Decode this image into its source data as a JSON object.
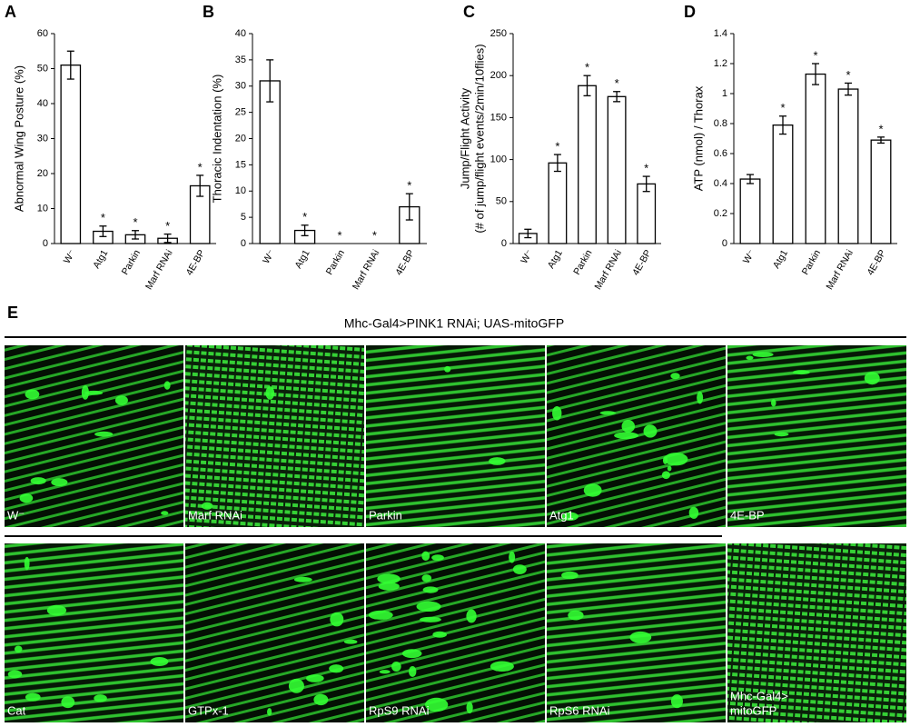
{
  "chart_data": [
    {
      "type": "bar",
      "panel_label": "A",
      "ylabel": "Abnormal Wing Posture (%)",
      "categories": [
        "W⁻",
        "Atg1",
        "Parkin",
        "Marf RNAi",
        "4E-BP"
      ],
      "values": [
        51,
        3.5,
        2.5,
        1.5,
        16.5
      ],
      "errors": [
        4,
        1.5,
        1.2,
        1.2,
        3
      ],
      "markers": [
        null,
        "*",
        "*",
        "*",
        "*"
      ],
      "color": "#ffffff",
      "ylim": [
        0,
        60
      ],
      "yticks": [
        0,
        10,
        20,
        30,
        40,
        50,
        60
      ]
    },
    {
      "type": "bar",
      "panel_label": "B",
      "ylabel": "Thoracic Indentation (%)",
      "categories": [
        "W⁻",
        "Atg1",
        "Parkin",
        "Marf RNAi",
        "4E-BP"
      ],
      "values": [
        31,
        2.5,
        0,
        0,
        7
      ],
      "errors": [
        4,
        1,
        null,
        null,
        2.5
      ],
      "markers": [
        null,
        "*",
        "*",
        "*",
        "*"
      ],
      "color": "#ffffff",
      "ylim": [
        0,
        40
      ],
      "yticks": [
        0,
        5,
        10,
        15,
        20,
        25,
        30,
        35,
        40
      ]
    },
    {
      "type": "bar",
      "panel_label": "C",
      "ylabel_lines": [
        "Jump/Flight Activity",
        "(# of jump/flight events/2min/10flies)"
      ],
      "categories": [
        "W⁻",
        "Atg1",
        "Parkin",
        "Marf RNAi",
        "4E-BP"
      ],
      "values": [
        12,
        96,
        188,
        175,
        71
      ],
      "errors": [
        5,
        10,
        12,
        6,
        9
      ],
      "markers": [
        null,
        "*",
        "*",
        "*",
        "*"
      ],
      "color": "#ffffff",
      "ylim": [
        0,
        250
      ],
      "yticks": [
        0,
        50,
        100,
        150,
        200,
        250
      ]
    },
    {
      "type": "bar",
      "panel_label": "D",
      "ylabel": "ATP (nmol) / Thorax",
      "categories": [
        "W⁻",
        "Atg1",
        "Parkin",
        "Marf RNAi",
        "4E-BP"
      ],
      "values": [
        0.43,
        0.79,
        1.13,
        1.03,
        0.69
      ],
      "errors": [
        0.03,
        0.06,
        0.07,
        0.04,
        0.02
      ],
      "markers": [
        null,
        "*",
        "*",
        "*",
        "*"
      ],
      "color": "#ffffff",
      "ylim": [
        0,
        1.4
      ],
      "yticks": [
        0,
        0.2,
        0.4,
        0.6,
        0.8,
        1,
        1.2,
        1.4
      ]
    }
  ],
  "panel_e": {
    "label": "E",
    "title": "Mhc-Gal4>PINK1 RNAi; UAS-mitoGFP",
    "images": [
      {
        "label": [
          "W⁻"
        ]
      },
      {
        "label": [
          "Marf RNAi"
        ]
      },
      {
        "label": [
          "Parkin"
        ]
      },
      {
        "label": [
          "Atg1"
        ]
      },
      {
        "label": [
          "4E-BP"
        ]
      },
      {
        "label": [
          "Cat"
        ]
      },
      {
        "label": [
          "GTPx-1"
        ]
      },
      {
        "label": [
          "RpS9 RNAi"
        ]
      },
      {
        "label": [
          "RpS6 RNAi"
        ]
      },
      {
        "label": [
          "Mhc-Gal4>",
          "mitoGFP"
        ]
      }
    ]
  }
}
